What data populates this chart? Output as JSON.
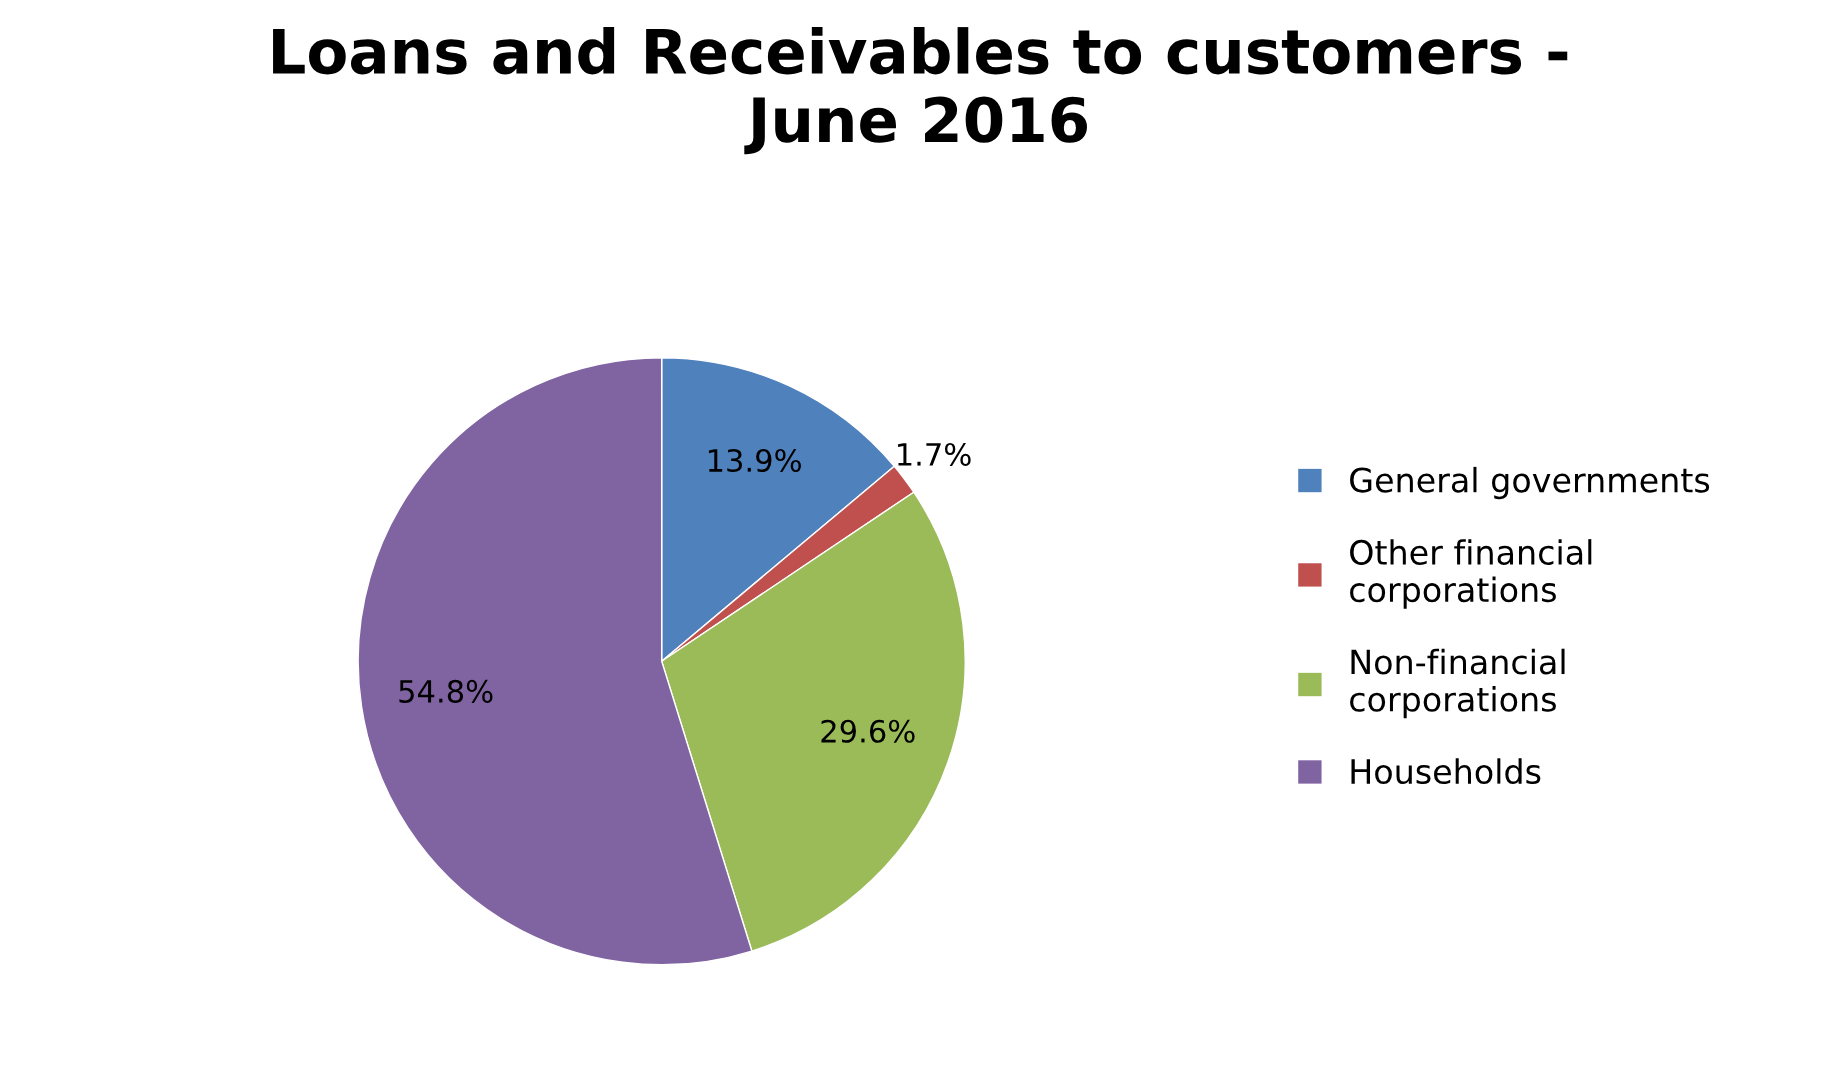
{
  "chart_data": {
    "type": "pie",
    "title": "Loans and Receivables to customers -\nJune 2016",
    "categories": [
      "General governments",
      "Other financial\ncorporations",
      "Non-financial\ncorporations",
      "Households"
    ],
    "values": [
      13.9,
      1.7,
      29.6,
      54.8
    ],
    "colors": [
      "#4f81bd",
      "#c0504d",
      "#9bbb59",
      "#8064a2"
    ],
    "value_labels": [
      "13.9%",
      "1.7%",
      "29.6%",
      "54.8%"
    ],
    "legend": "right"
  }
}
